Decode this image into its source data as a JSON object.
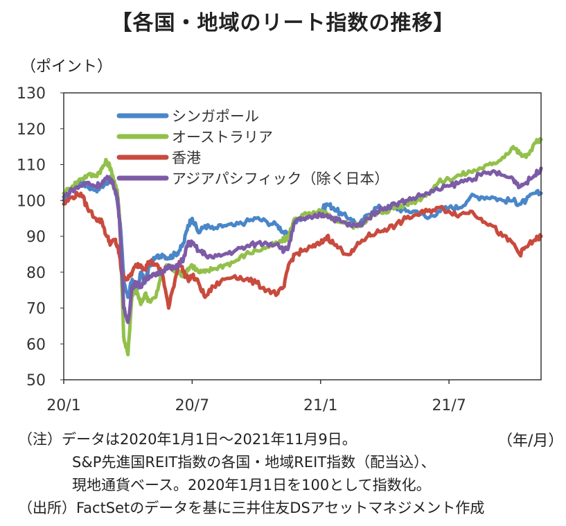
{
  "title": "【各国・地域のリート指数の推移】",
  "unit_label": "（ポイント）",
  "period_label": "（年/月）",
  "notes": {
    "line1": "（注）データは2020年1月1日～2021年11月9日。",
    "line2": "S&P先進国REIT指数の各国・地域REIT指数（配当込）、",
    "line3": "現地通貨ベース。2020年1月1日を100として指数化。",
    "line4": "（出所）FactSetのデータを基に三井住友DSアセットマネジメント作成"
  },
  "chart_data": {
    "type": "line",
    "title": "【各国・地域のリート指数の推移】",
    "ylabel": "（ポイント）",
    "xlabel": "（年/月）",
    "ylim": [
      50,
      130
    ],
    "yticks": [
      50,
      60,
      70,
      80,
      90,
      100,
      110,
      120,
      130
    ],
    "xlim": [
      0,
      22.3
    ],
    "xticks": [
      {
        "label": "20/1",
        "value": 0
      },
      {
        "label": "20/7",
        "value": 6
      },
      {
        "label": "21/1",
        "value": 12
      },
      {
        "label": "21/7",
        "value": 18
      }
    ],
    "legend_position": "top-left",
    "series": [
      {
        "name": "シンガポール",
        "color": "#4a86c8",
        "x": [
          0,
          0.4,
          0.8,
          1.1,
          1.5,
          1.8,
          2.0,
          2.2,
          2.4,
          2.5,
          2.6,
          2.7,
          2.8,
          3.0,
          3.2,
          3.4,
          3.6,
          3.8,
          4.0,
          4.3,
          4.6,
          4.9,
          5.2,
          5.4,
          5.6,
          5.8,
          6.0,
          6.3,
          6.6,
          7.0,
          7.5,
          8.0,
          8.5,
          9.0,
          9.5,
          10.0,
          10.3,
          10.5,
          10.8,
          11.2,
          11.6,
          12.0,
          12.3,
          12.6,
          13.0,
          13.4,
          13.8,
          14.2,
          14.6,
          15.0,
          15.5,
          16.0,
          16.5,
          17.0,
          17.5,
          18.0,
          18.5,
          19.0,
          19.5,
          20.0,
          20.5,
          21.0,
          21.3,
          21.6,
          22.0,
          22.3
        ],
        "values": [
          100,
          103,
          105,
          104,
          103,
          104,
          105,
          106,
          103,
          100,
          96,
          88,
          78,
          73,
          78,
          74,
          80,
          77,
          82,
          84,
          85,
          84,
          85,
          86,
          88,
          93,
          95,
          91,
          93,
          92,
          93,
          93,
          94,
          95,
          94,
          93,
          91,
          90,
          94,
          95,
          96,
          97,
          99,
          98,
          96,
          95,
          93,
          96,
          98,
          98,
          98,
          97,
          97,
          95,
          97,
          98,
          98,
          101,
          101,
          101,
          100,
          100,
          99,
          100,
          102,
          102
        ]
      },
      {
        "name": "オーストラリア",
        "color": "#92c04b",
        "x": [
          0,
          0.4,
          0.8,
          1.1,
          1.5,
          1.8,
          2.0,
          2.2,
          2.4,
          2.5,
          2.6,
          2.7,
          2.8,
          3.0,
          3.2,
          3.4,
          3.6,
          3.8,
          4.0,
          4.3,
          4.6,
          4.9,
          5.2,
          5.4,
          5.6,
          5.8,
          6.0,
          6.3,
          6.6,
          7.0,
          7.5,
          8.0,
          8.5,
          9.0,
          9.5,
          10.0,
          10.3,
          10.5,
          10.8,
          11.2,
          11.6,
          12.0,
          12.3,
          12.6,
          13.0,
          13.4,
          13.8,
          14.2,
          14.6,
          15.0,
          15.5,
          16.0,
          16.5,
          17.0,
          17.5,
          18.0,
          18.5,
          19.0,
          19.5,
          20.0,
          20.5,
          21.0,
          21.3,
          21.6,
          22.0,
          22.3
        ],
        "values": [
          102,
          104,
          106,
          107,
          107,
          109,
          111,
          109,
          104,
          103,
          96,
          80,
          62,
          57,
          74,
          75,
          71,
          74,
          72,
          73,
          80,
          82,
          80,
          80,
          79,
          81,
          82,
          80,
          80,
          81,
          82,
          83,
          85,
          86,
          87,
          88,
          89,
          90,
          95,
          96,
          96,
          97,
          96,
          95,
          94,
          93,
          93,
          95,
          96,
          97,
          98,
          99,
          100,
          102,
          105,
          106,
          107,
          108,
          109,
          110,
          112,
          115,
          113,
          112,
          116,
          117
        ]
      },
      {
        "name": "香港",
        "color": "#c94a3e",
        "x": [
          0,
          0.4,
          0.8,
          1.1,
          1.5,
          1.8,
          2.0,
          2.2,
          2.4,
          2.5,
          2.6,
          2.7,
          2.8,
          3.0,
          3.2,
          3.4,
          3.6,
          3.8,
          4.0,
          4.3,
          4.6,
          4.9,
          5.2,
          5.4,
          5.6,
          5.8,
          6.0,
          6.3,
          6.6,
          7.0,
          7.5,
          8.0,
          8.5,
          9.0,
          9.5,
          10.0,
          10.3,
          10.5,
          10.8,
          11.2,
          11.6,
          12.0,
          12.3,
          12.6,
          13.0,
          13.4,
          13.8,
          14.2,
          14.6,
          15.0,
          15.5,
          16.0,
          16.5,
          17.0,
          17.5,
          18.0,
          18.5,
          19.0,
          19.5,
          20.0,
          20.5,
          21.0,
          21.3,
          21.6,
          22.0,
          22.3
        ],
        "values": [
          99,
          101,
          102,
          98,
          95,
          94,
          90,
          88,
          89,
          87,
          85,
          80,
          79,
          78,
          80,
          82,
          82,
          81,
          83,
          82,
          80,
          70,
          78,
          83,
          80,
          78,
          79,
          77,
          73,
          76,
          78,
          79,
          78,
          77,
          75,
          74,
          76,
          82,
          85,
          86,
          87,
          88,
          90,
          88,
          86,
          85,
          88,
          90,
          91,
          92,
          93,
          95,
          96,
          97,
          98,
          97,
          96,
          97,
          95,
          93,
          90,
          88,
          85,
          87,
          89,
          90
        ]
      },
      {
        "name": "アジアパシフィック（除く日本）",
        "color": "#7d5ba6",
        "x": [
          0,
          0.4,
          0.8,
          1.1,
          1.5,
          1.8,
          2.0,
          2.2,
          2.4,
          2.5,
          2.6,
          2.7,
          2.8,
          3.0,
          3.2,
          3.4,
          3.6,
          3.8,
          4.0,
          4.3,
          4.6,
          4.9,
          5.2,
          5.4,
          5.6,
          5.8,
          6.0,
          6.3,
          6.6,
          7.0,
          7.5,
          8.0,
          8.5,
          9.0,
          9.5,
          10.0,
          10.3,
          10.5,
          10.8,
          11.2,
          11.6,
          12.0,
          12.3,
          12.6,
          13.0,
          13.4,
          13.8,
          14.2,
          14.6,
          15.0,
          15.5,
          16.0,
          16.5,
          17.0,
          17.5,
          18.0,
          18.5,
          19.0,
          19.5,
          20.0,
          20.5,
          21.0,
          21.3,
          21.6,
          22.0,
          22.3
        ],
        "values": [
          101,
          103,
          104,
          105,
          104,
          105,
          106,
          106,
          103,
          101,
          95,
          84,
          70,
          66,
          76,
          77,
          76,
          78,
          79,
          79,
          80,
          82,
          81,
          82,
          84,
          88,
          88,
          86,
          85,
          84,
          85,
          86,
          87,
          88,
          88,
          88,
          86,
          87,
          94,
          95,
          95,
          96,
          96,
          95,
          94,
          93,
          93,
          95,
          97,
          98,
          99,
          100,
          101,
          102,
          103,
          104,
          105,
          106,
          107,
          108,
          107,
          106,
          104,
          105,
          107,
          109
        ]
      }
    ]
  }
}
